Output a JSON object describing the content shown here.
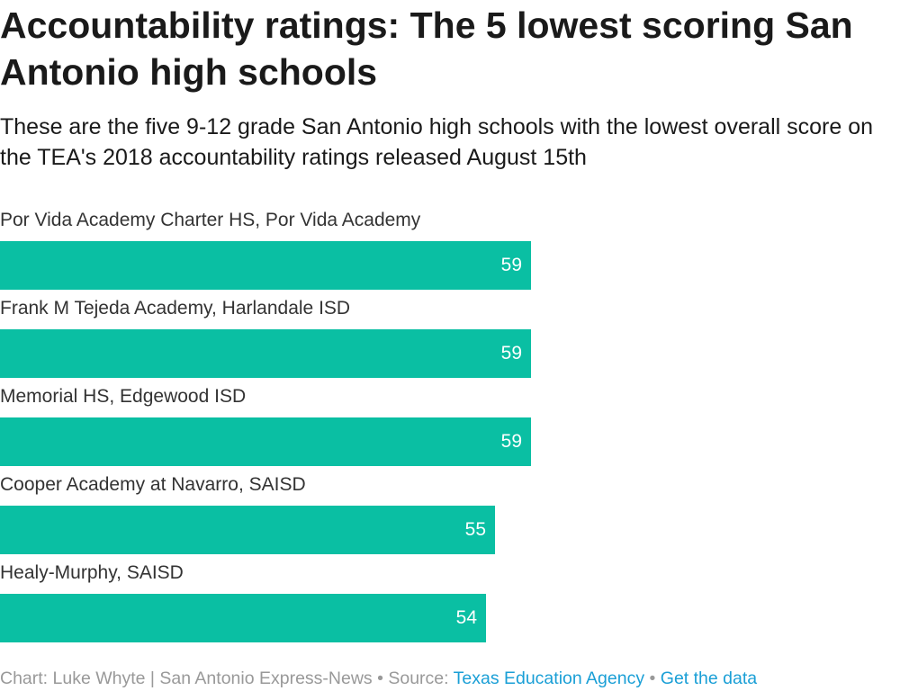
{
  "header": {
    "title": "Accountability ratings: The 5 lowest scoring San Antonio high schools",
    "subtitle": "These are the five 9-12 grade San Antonio high schools with the lowest overall score on the TEA's 2018 accountability ratings released August 15th"
  },
  "chart_data": {
    "type": "bar",
    "orientation": "horizontal",
    "categories": [
      "Por Vida Academy Charter HS, Por Vida Academy",
      "Frank M Tejeda Academy, Harlandale ISD",
      "Memorial HS, Edgewood ISD",
      "Cooper Academy at Navarro, SAISD",
      "Healy-Murphy, SAISD"
    ],
    "values": [
      59,
      59,
      59,
      55,
      54
    ],
    "xlim": [
      0,
      100
    ],
    "bar_color": "#0abfa3",
    "value_label_color": "#ffffff",
    "grid": false,
    "legend": false
  },
  "footer": {
    "credit": "Chart: Luke Whyte | San Antonio Express-News",
    "separator": " • ",
    "source_label": "Source: ",
    "source_link": "Texas Education Agency",
    "data_link": "Get the data",
    "link_color": "#1a9fd6"
  }
}
